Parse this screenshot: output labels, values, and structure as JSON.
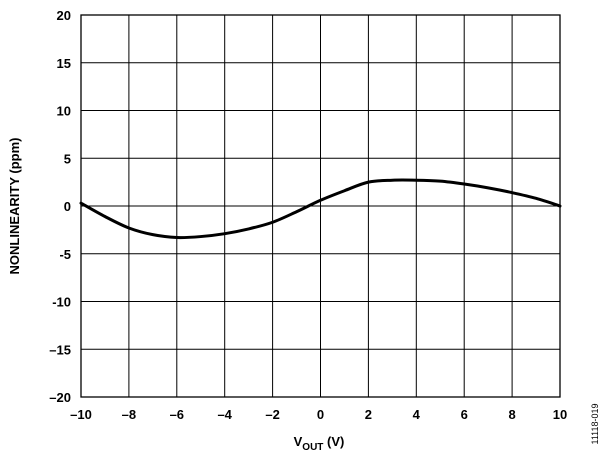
{
  "chart_data": {
    "type": "line",
    "title": "",
    "xlabel_main": "V",
    "xlabel_sub": "OUT",
    "xlabel_unit": " (V)",
    "ylabel": "NONLINEARITY (ppm)",
    "xlim": [
      -10,
      10
    ],
    "ylim": [
      -20,
      20
    ],
    "grid": true,
    "x_ticks": [
      "–10",
      "–8",
      "–6",
      "–4",
      "–2",
      "0",
      "2",
      "4",
      "6",
      "8",
      "10"
    ],
    "y_ticks": [
      "20",
      "15",
      "10",
      "5",
      "0",
      "-5",
      "-10",
      "–15",
      "–20"
    ],
    "series": [
      {
        "x": [
          -10,
          -9,
          -8,
          -7,
          -6,
          -5,
          -4,
          -3,
          -2,
          -1,
          0,
          1,
          2,
          3,
          4,
          5,
          6,
          7,
          8,
          9,
          10
        ],
        "y": [
          0.3,
          -1.1,
          -2.3,
          -3.0,
          -3.3,
          -3.2,
          -2.9,
          -2.4,
          -1.7,
          -0.6,
          0.6,
          1.6,
          2.5,
          2.7,
          2.7,
          2.6,
          2.3,
          1.9,
          1.4,
          0.8,
          0.0
        ]
      }
    ]
  },
  "figure_id": "11118-019"
}
